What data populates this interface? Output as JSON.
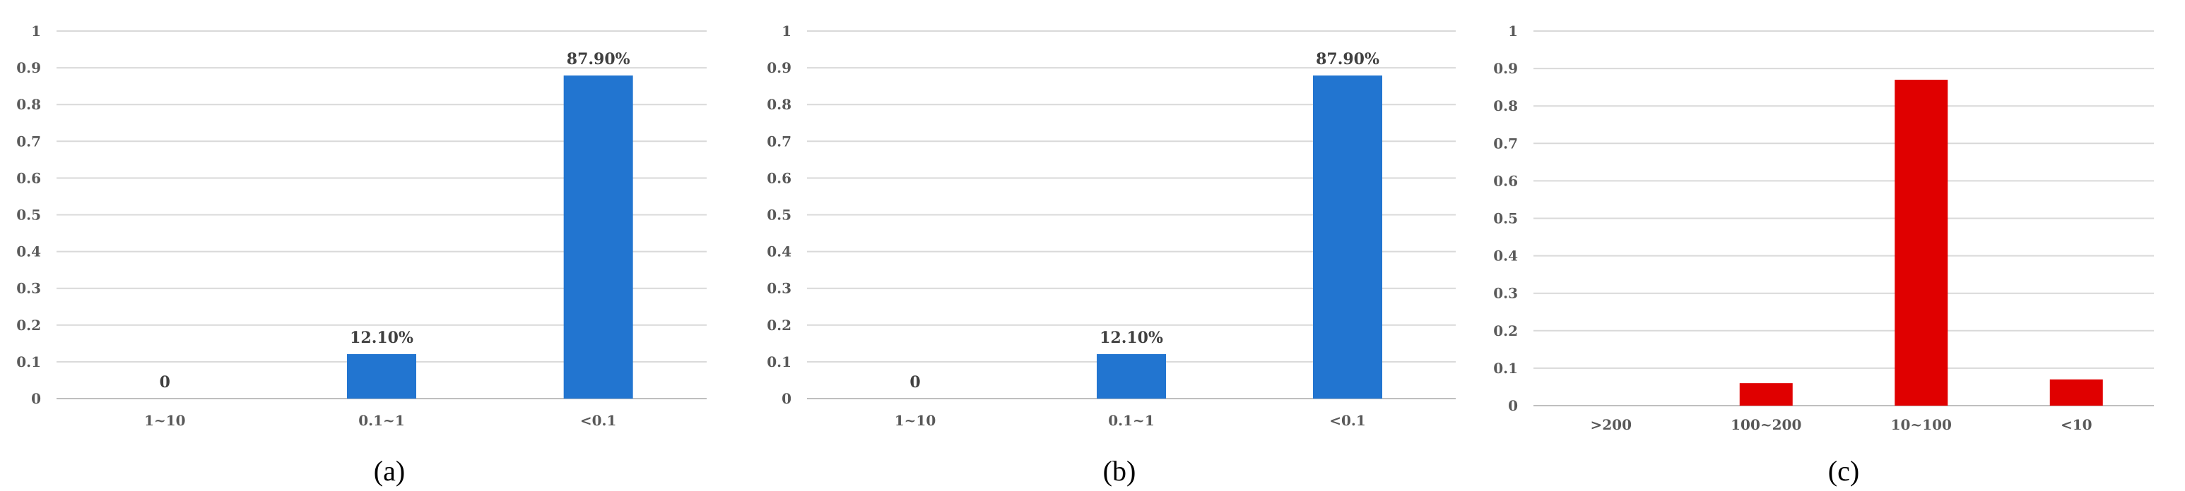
{
  "chart_data": [
    {
      "type": "bar",
      "caption": "(a)",
      "categories": [
        "1~10",
        "0.1~1",
        "<0.1"
      ],
      "values": [
        0,
        0.121,
        0.879
      ],
      "data_labels": [
        "0",
        "12.10%",
        "87.90%"
      ],
      "ylim": [
        0,
        1
      ],
      "yticks": [
        "0",
        "0.1",
        "0.2",
        "0.3",
        "0.4",
        "0.5",
        "0.6",
        "0.7",
        "0.8",
        "0.9",
        "1"
      ],
      "grid": true,
      "color": "#2275D0"
    },
    {
      "type": "bar",
      "caption": "(b)",
      "categories": [
        "1~10",
        "0.1~1",
        "<0.1"
      ],
      "values": [
        0,
        0.121,
        0.879
      ],
      "data_labels": [
        "0",
        "12.10%",
        "87.90%"
      ],
      "ylim": [
        0,
        1
      ],
      "yticks": [
        "0",
        "0.1",
        "0.2",
        "0.3",
        "0.4",
        "0.5",
        "0.6",
        "0.7",
        "0.8",
        "0.9",
        "1"
      ],
      "grid": true,
      "color": "#2275D0"
    },
    {
      "type": "bar",
      "caption": "(c)",
      "categories": [
        ">200",
        "100~200",
        "10~100",
        "<10"
      ],
      "values": [
        0,
        0.06,
        0.87,
        0.07
      ],
      "data_labels": [],
      "ylim": [
        0,
        1
      ],
      "yticks": [
        "0",
        "0.1",
        "0.2",
        "0.3",
        "0.4",
        "0.5",
        "0.6",
        "0.7",
        "0.8",
        "0.9",
        "1"
      ],
      "grid": true,
      "color": "#E00000"
    }
  ]
}
